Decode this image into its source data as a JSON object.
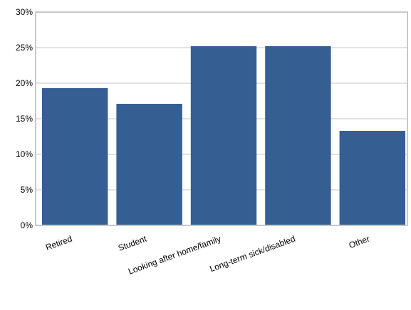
{
  "chart_data": {
    "type": "bar",
    "categories": [
      "Retired",
      "Student",
      "Looking after home/family",
      "Long-term sick/disabled",
      "Other"
    ],
    "values": [
      19.3,
      17.1,
      25.2,
      25.2,
      13.3
    ],
    "y_ticks": [
      "0%",
      "5%",
      "10%",
      "15%",
      "20%",
      "25%",
      "30%"
    ],
    "ylim": [
      0,
      30
    ],
    "grid": true,
    "bar_color": "#355f92",
    "grid_color": "#e3e3e3",
    "frame_color": "#c8c8c8"
  }
}
